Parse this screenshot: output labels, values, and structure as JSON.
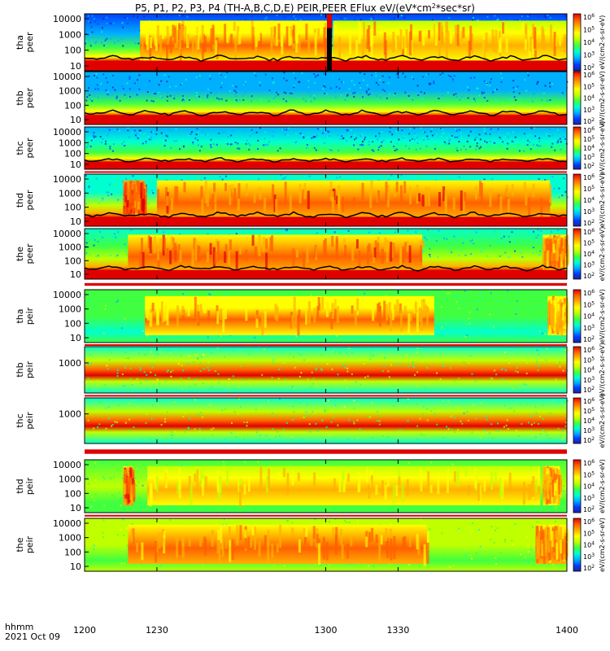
{
  "chart_data": {
    "type": "heatmap",
    "title": "P5, P1, P2, P3, P4 (TH-A,B,C,D,E) PEIR,PEER EFlux eV/(eV*cm",
    "title_sup": "2",
    "title_end": "*sec*sr)",
    "x_axis": {
      "range": [
        1200,
        1400
      ],
      "ticks": [
        "1200",
        "1230",
        "1300",
        "1330",
        "1400"
      ],
      "tick_values": [
        1200,
        1230,
        1300,
        1330,
        1400
      ],
      "label": "hhmm",
      "date": "2021 Oct 09"
    },
    "colorbar": {
      "range_exponent": [
        1,
        6
      ],
      "label": "[eV/(cm2-s-sr-eV)] (All)",
      "colors": [
        "#2020a0",
        "#0040ff",
        "#00b0ff",
        "#00ffd0",
        "#40ff40",
        "#c0ff00",
        "#ffff00",
        "#ffb000",
        "#ff6000",
        "#e00000"
      ]
    },
    "panels": [
      {
        "probe": "tha",
        "species": "peer",
        "yticks": [
          "10",
          "100",
          "1000",
          "10000"
        ],
        "background_level": 0.15,
        "dense_segments": [
          [
            1223,
            1301,
            0.72
          ],
          [
            1303,
            1400,
            0.7
          ]
        ],
        "bottom_band_level": 0.98,
        "gap_segments": [
          [
            1300.5,
            1302.5
          ]
        ]
      },
      {
        "probe": "thb",
        "species": "peer",
        "yticks": [
          "10",
          "100",
          "1000",
          "10000"
        ],
        "background_level": 0.18,
        "dense_segments": [],
        "bottom_band_level": 0.97,
        "gap_segments": []
      },
      {
        "probe": "thc",
        "species": "peer",
        "yticks": [
          "10",
          "100",
          "1000",
          "10000"
        ],
        "background_level": 0.2,
        "dense_segments": [],
        "bottom_band_level": 0.97,
        "gap_segments": []
      },
      {
        "probe": "thd",
        "species": "peer",
        "yticks": [
          "10",
          "100",
          "1000",
          "10000"
        ],
        "background_level": 0.3,
        "dense_segments": [
          [
            1216,
            1225,
            0.85
          ],
          [
            1230,
            1393,
            0.8
          ]
        ],
        "bottom_band_level": 0.98,
        "gap_segments": []
      },
      {
        "probe": "the",
        "species": "peer",
        "yticks": [
          "10",
          "100",
          "1000",
          "10000"
        ],
        "background_level": 0.32,
        "dense_segments": [
          [
            1218,
            1340,
            0.82
          ],
          [
            1390,
            1400,
            0.75
          ]
        ],
        "bottom_band_level": 0.98,
        "gap_segments": []
      },
      {
        "probe": "tha",
        "species": "peir",
        "yticks": [
          "10",
          "100",
          "1000",
          "10000"
        ],
        "background_level": 0.4,
        "dense_segments": [
          [
            1225,
            1345,
            0.72
          ],
          [
            1392,
            1400,
            0.72
          ]
        ],
        "bottom_band_level": 0.45,
        "gap_segments": []
      },
      {
        "probe": "thb",
        "species": "peir",
        "yticks": [
          "1000"
        ],
        "background_level": 0.45,
        "dense_segments": [],
        "bottom_band_level": 0.4,
        "gap_segments": []
      },
      {
        "probe": "thc",
        "species": "peir",
        "yticks": [
          "1000"
        ],
        "background_level": 0.45,
        "dense_segments": [],
        "bottom_band_level": 0.4,
        "gap_segments": []
      },
      {
        "probe": "thd",
        "species": "peir",
        "yticks": [
          "10",
          "100",
          "1000",
          "10000"
        ],
        "background_level": 0.45,
        "dense_segments": [
          [
            1216,
            1220,
            0.8
          ],
          [
            1226,
            1389,
            0.62
          ],
          [
            1390,
            1397,
            0.72
          ]
        ],
        "bottom_band_level": 0.45,
        "gap_segments": []
      },
      {
        "probe": "the",
        "species": "peir",
        "yticks": [
          "10",
          "100",
          "1000",
          "10000"
        ],
        "background_level": 0.5,
        "dense_segments": [
          [
            1218,
            1342,
            0.75
          ],
          [
            1387,
            1400,
            0.75
          ]
        ],
        "bottom_band_level": 0.5,
        "gap_segments": []
      }
    ],
    "colorbar_units_text": "eV/(cm2-s-sr-eV)",
    "colorbar_tick_labels": [
      "10",
      "10",
      "10",
      "10",
      "10"
    ],
    "colorbar_tick_exponents": [
      "2",
      "3",
      "4",
      "5",
      "6"
    ]
  }
}
